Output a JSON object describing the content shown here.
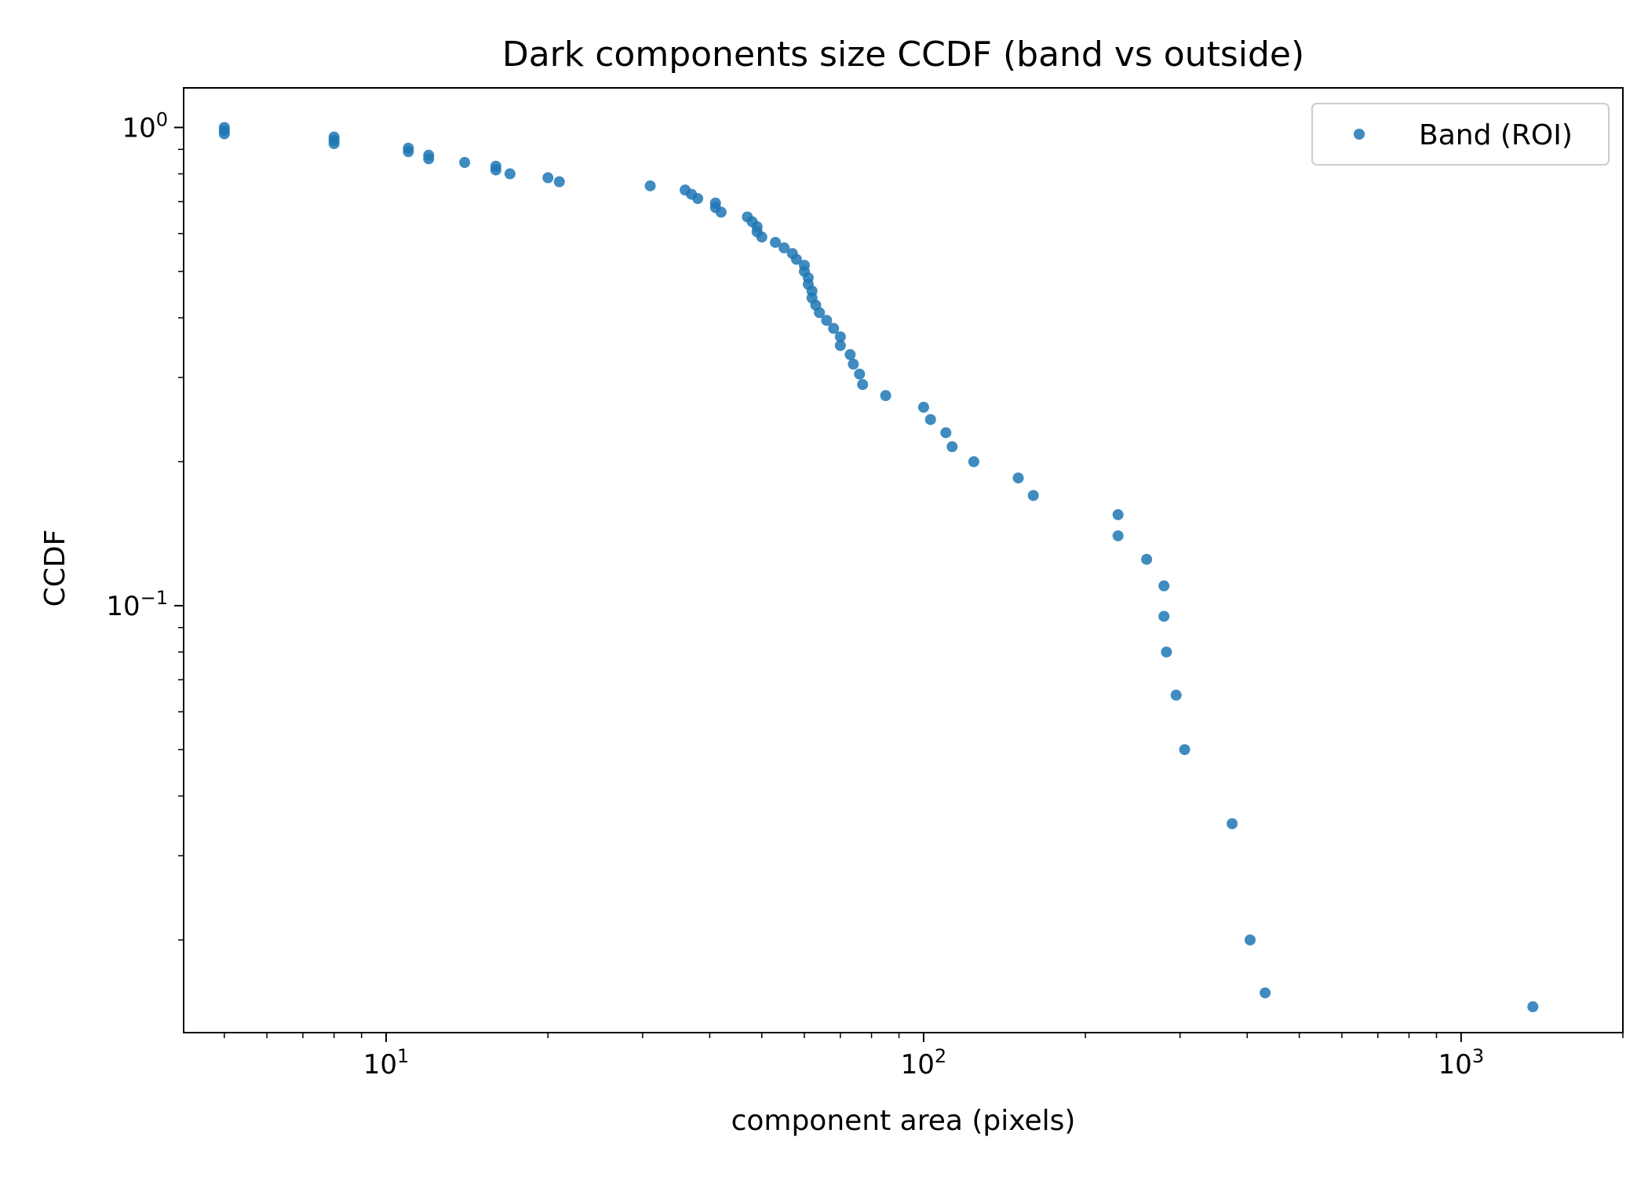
{
  "chart_data": {
    "type": "scatter",
    "title": "Dark components size CCDF (band vs outside)",
    "xlabel": "component area (pixels)",
    "ylabel": "CCDF",
    "xscale": "log",
    "yscale": "log",
    "xlim": [
      4.2,
      2000
    ],
    "ylim": [
      0.0128,
      1.21
    ],
    "x_ticks": [
      {
        "value": 10,
        "base": "10",
        "exp": "1"
      },
      {
        "value": 100,
        "base": "10",
        "exp": "2"
      },
      {
        "value": 1000,
        "base": "10",
        "exp": "3"
      }
    ],
    "y_ticks": [
      {
        "value": 1,
        "base": "10",
        "exp": "0"
      },
      {
        "value": 0.1,
        "base": "10",
        "exp": "−1"
      }
    ],
    "grid": false,
    "legend": {
      "position": "top-right",
      "entries": [
        "Band (ROI)"
      ]
    },
    "colors": {
      "series": "#1f77b4"
    },
    "series": [
      {
        "name": "Band (ROI)",
        "points": [
          [
            5,
            1.0
          ],
          [
            5,
            0.985
          ],
          [
            5,
            0.97
          ],
          [
            8,
            0.955
          ],
          [
            8,
            0.94
          ],
          [
            8,
            0.925
          ],
          [
            11,
            0.905
          ],
          [
            11,
            0.89
          ],
          [
            12,
            0.875
          ],
          [
            12,
            0.86
          ],
          [
            14,
            0.845
          ],
          [
            16,
            0.83
          ],
          [
            16,
            0.815
          ],
          [
            17,
            0.8
          ],
          [
            20,
            0.785
          ],
          [
            21,
            0.77
          ],
          [
            31,
            0.755
          ],
          [
            36,
            0.74
          ],
          [
            37,
            0.725
          ],
          [
            38,
            0.71
          ],
          [
            41,
            0.695
          ],
          [
            41,
            0.68
          ],
          [
            42,
            0.665
          ],
          [
            47,
            0.65
          ],
          [
            48,
            0.635
          ],
          [
            49,
            0.62
          ],
          [
            49,
            0.605
          ],
          [
            50,
            0.59
          ],
          [
            53,
            0.575
          ],
          [
            55,
            0.56
          ],
          [
            57,
            0.545
          ],
          [
            58,
            0.53
          ],
          [
            60,
            0.515
          ],
          [
            60,
            0.5
          ],
          [
            61,
            0.485
          ],
          [
            61,
            0.47
          ],
          [
            62,
            0.455
          ],
          [
            62,
            0.44
          ],
          [
            63,
            0.425
          ],
          [
            64,
            0.41
          ],
          [
            66,
            0.395
          ],
          [
            68,
            0.38
          ],
          [
            70,
            0.365
          ],
          [
            70,
            0.35
          ],
          [
            73,
            0.335
          ],
          [
            74,
            0.32
          ],
          [
            76,
            0.305
          ],
          [
            77,
            0.29
          ],
          [
            85,
            0.275
          ],
          [
            100,
            0.26
          ],
          [
            103,
            0.245
          ],
          [
            110,
            0.23
          ],
          [
            113,
            0.215
          ],
          [
            124,
            0.2
          ],
          [
            150,
            0.185
          ],
          [
            160,
            0.17
          ],
          [
            230,
            0.155
          ],
          [
            230,
            0.14
          ],
          [
            260,
            0.125
          ],
          [
            280,
            0.11
          ],
          [
            280,
            0.095
          ],
          [
            283,
            0.08
          ],
          [
            295,
            0.065
          ],
          [
            306,
            0.05
          ],
          [
            375,
            0.035
          ],
          [
            405,
            0.02
          ],
          [
            432,
            0.0155
          ],
          [
            1360,
            0.0145
          ]
        ]
      }
    ]
  }
}
